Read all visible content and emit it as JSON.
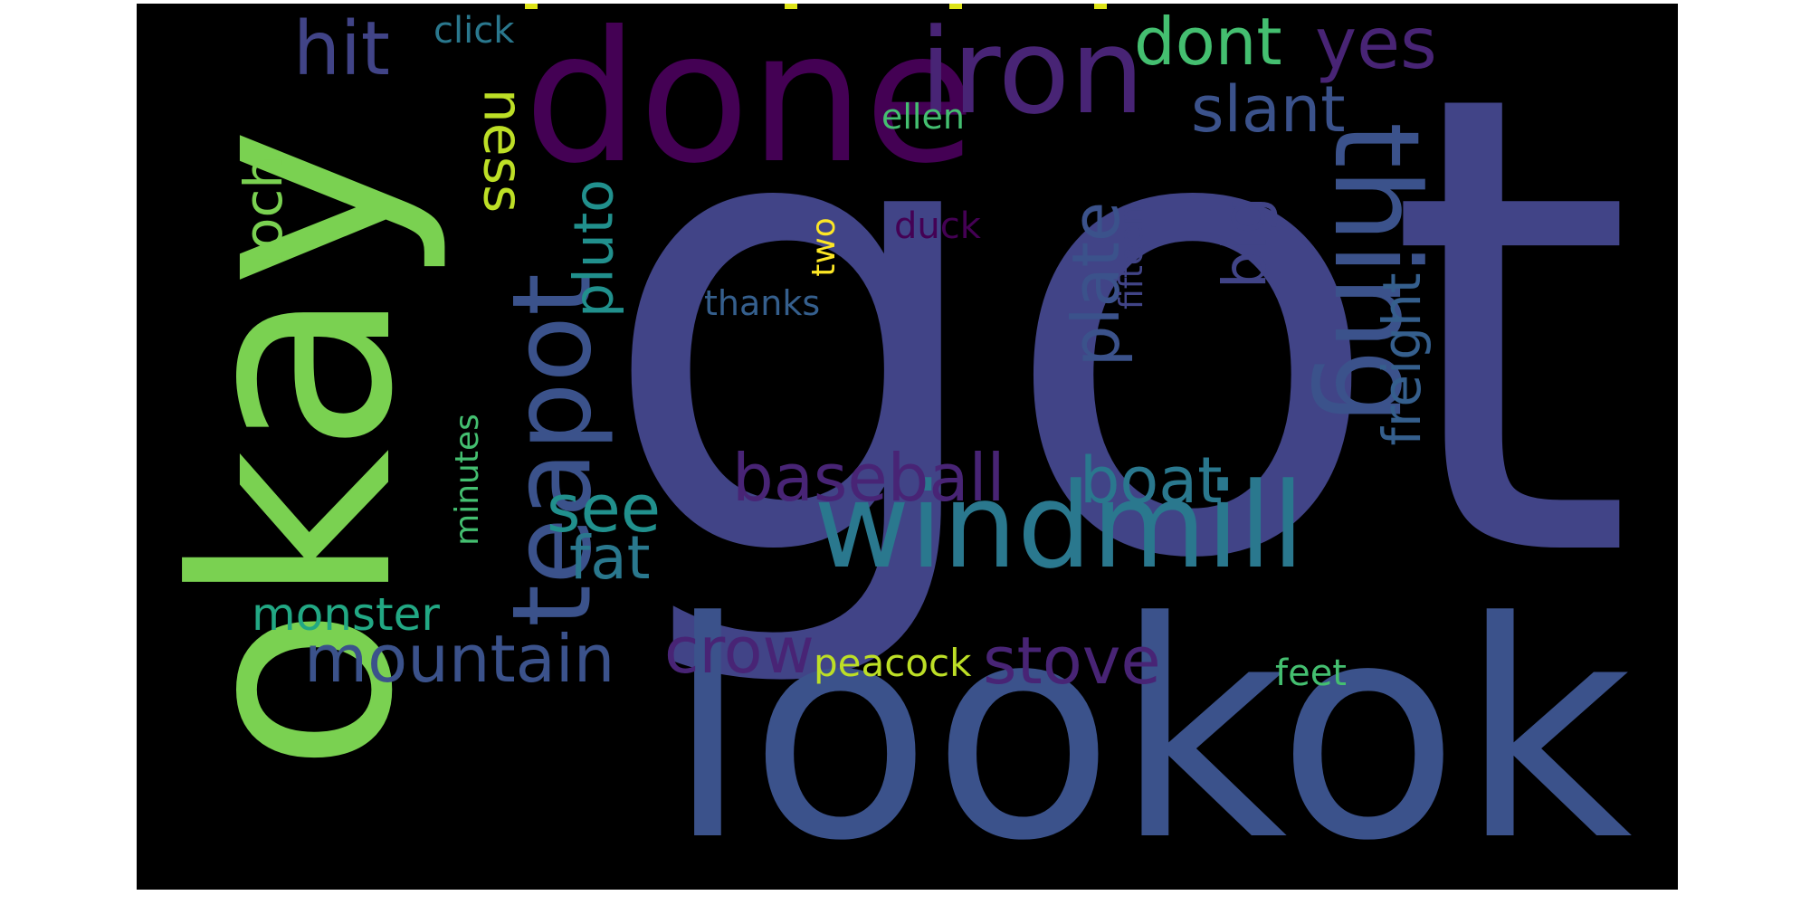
{
  "colors": {
    "background": "#000000",
    "page": "#ffffff",
    "palette": [
      "#440154",
      "#482475",
      "#414487",
      "#355f8d",
      "#2a788e",
      "#21908d",
      "#22a884",
      "#44bf70",
      "#7ad151",
      "#bddf26",
      "#fde725"
    ]
  },
  "wordcloud": {
    "words": [
      {
        "text": "got"
      },
      {
        "text": "lookok"
      },
      {
        "text": "okay"
      },
      {
        "text": "done"
      },
      {
        "text": "iron"
      },
      {
        "text": "windmill"
      },
      {
        "text": "thing"
      },
      {
        "text": "teapot"
      },
      {
        "text": "dont"
      },
      {
        "text": "yes"
      },
      {
        "text": "hit"
      },
      {
        "text": "click"
      },
      {
        "text": "ness"
      },
      {
        "text": "slant"
      },
      {
        "text": "ellen"
      },
      {
        "text": "loch"
      },
      {
        "text": "pluto"
      },
      {
        "text": "plate"
      },
      {
        "text": "big"
      },
      {
        "text": "freight"
      },
      {
        "text": "duck"
      },
      {
        "text": "two"
      },
      {
        "text": "fifteen"
      },
      {
        "text": "thanks"
      },
      {
        "text": "baseball"
      },
      {
        "text": "boat"
      },
      {
        "text": "see"
      },
      {
        "text": "fat"
      },
      {
        "text": "minutes"
      },
      {
        "text": "monster"
      },
      {
        "text": "mountain"
      },
      {
        "text": "crow"
      },
      {
        "text": "stove"
      },
      {
        "text": "peacock"
      },
      {
        "text": "feet"
      }
    ]
  }
}
